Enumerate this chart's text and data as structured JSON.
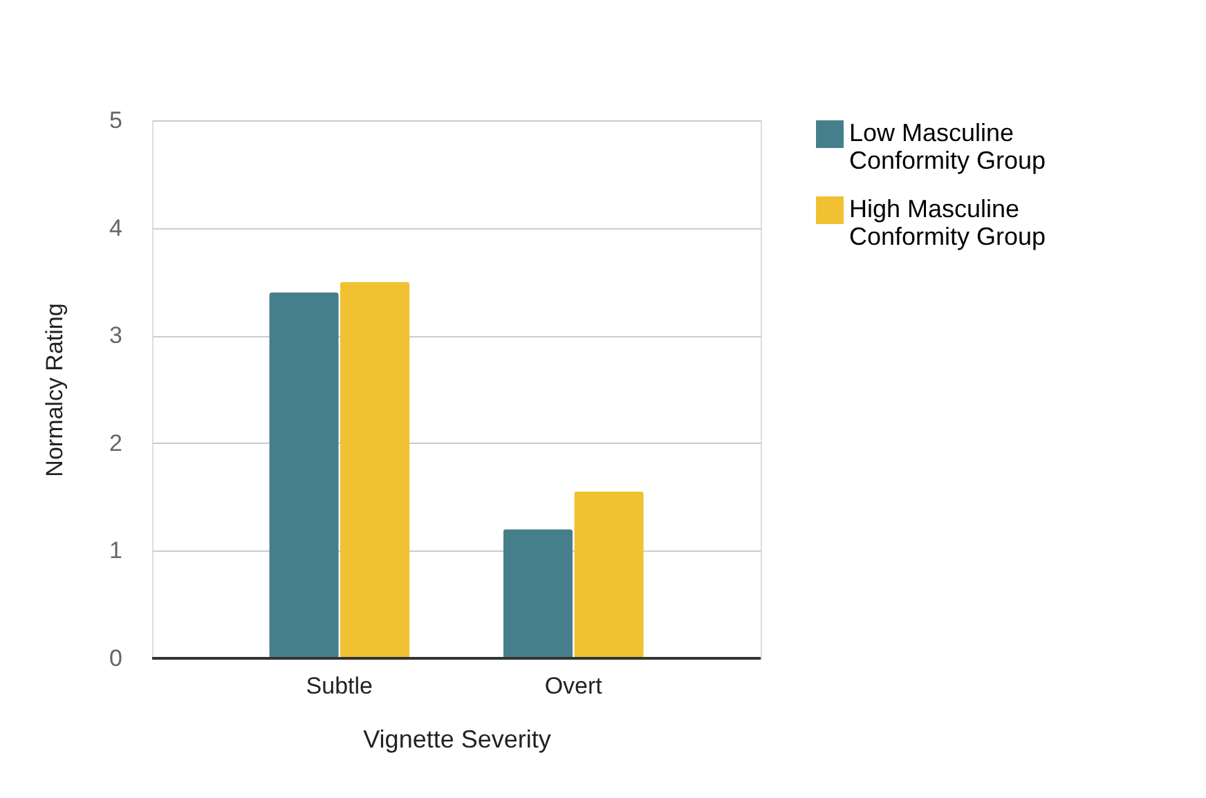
{
  "chart_data": {
    "type": "bar",
    "xlabel": "Vignette Severity",
    "ylabel": "Normalcy Rating",
    "categories": [
      "Subtle",
      "Overt"
    ],
    "series": [
      {
        "name": "Low Masculine Conformity Group",
        "color": "#467f8c",
        "values": [
          3.4,
          1.2
        ]
      },
      {
        "name": "High Masculine Conformity Group",
        "color": "#f0c232",
        "values": [
          3.5,
          1.55
        ]
      }
    ],
    "ylim": [
      0,
      5
    ],
    "yticks": [
      0,
      1,
      2,
      3,
      4,
      5
    ],
    "grid": "y",
    "legend": "top right"
  }
}
